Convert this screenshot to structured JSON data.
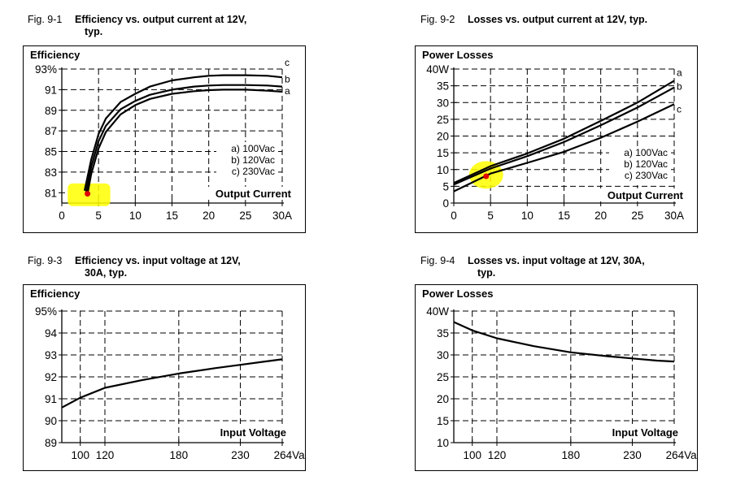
{
  "chart_data": [
    {
      "type": "line",
      "fig_num": "Fig. 9-1",
      "title": "Efficiency vs. output current at 12V,",
      "title_line2": "typ.",
      "ylabel": "Efficiency",
      "xlabel": "Output Current",
      "xlim": [
        0,
        30
      ],
      "ylim": [
        80,
        93
      ],
      "xticks": [
        0,
        5,
        10,
        15,
        20,
        25,
        30
      ],
      "xtick_labels": [
        "0",
        "5",
        "10",
        "15",
        "20",
        "25",
        "30A"
      ],
      "yticks": [
        81,
        83,
        85,
        87,
        89,
        91,
        93
      ],
      "ytick_labels": [
        "81",
        "83",
        "85",
        "87",
        "89",
        "91",
        "93%"
      ],
      "legend": [
        "a) 100Vac",
        "b) 120Vac",
        "c) 230Vac"
      ],
      "series": [
        {
          "label": "a",
          "x": [
            3.5,
            4,
            5,
            6,
            8,
            10,
            12,
            15,
            18,
            20,
            22,
            25,
            28,
            30
          ],
          "y": [
            80.9,
            82.8,
            85.3,
            86.9,
            88.6,
            89.5,
            90.1,
            90.6,
            90.85,
            90.95,
            91.0,
            91.0,
            90.9,
            90.8
          ]
        },
        {
          "label": "b",
          "x": [
            3.3,
            4,
            5,
            6,
            8,
            10,
            12,
            15,
            18,
            20,
            22,
            25,
            28,
            30
          ],
          "y": [
            81.0,
            83.5,
            86.0,
            87.5,
            89.1,
            89.9,
            90.5,
            91.0,
            91.3,
            91.4,
            91.45,
            91.45,
            91.4,
            91.3
          ]
        },
        {
          "label": "c",
          "x": [
            3.1,
            4,
            5,
            6,
            8,
            10,
            12,
            15,
            18,
            20,
            22,
            25,
            28,
            30
          ],
          "y": [
            81.2,
            84.2,
            86.7,
            88.2,
            89.8,
            90.6,
            91.3,
            91.9,
            92.2,
            92.35,
            92.4,
            92.4,
            92.35,
            92.2
          ]
        }
      ]
    },
    {
      "type": "line",
      "fig_num": "Fig. 9-2",
      "title": "Losses vs. output current at 12V, typ.",
      "title_line2": "",
      "ylabel": "Power Losses",
      "xlabel": "Output Current",
      "xlim": [
        0,
        30
      ],
      "ylim": [
        0,
        40
      ],
      "xticks": [
        0,
        5,
        10,
        15,
        20,
        25,
        30
      ],
      "xtick_labels": [
        "0",
        "5",
        "10",
        "15",
        "20",
        "25",
        "30A"
      ],
      "yticks": [
        0,
        5,
        10,
        15,
        20,
        25,
        30,
        35,
        40
      ],
      "ytick_labels": [
        "0",
        "5",
        "10",
        "15",
        "20",
        "25",
        "30",
        "35",
        "40W"
      ],
      "legend": [
        "a) 100Vac",
        "b) 120Vac",
        "c) 230Vac"
      ],
      "series": [
        {
          "label": "a",
          "x": [
            0,
            5,
            10,
            15,
            20,
            25,
            30
          ],
          "y": [
            6.0,
            11.0,
            14.8,
            19.2,
            24.5,
            30.0,
            36.5
          ]
        },
        {
          "label": "b",
          "x": [
            0,
            5,
            10,
            15,
            20,
            25,
            30
          ],
          "y": [
            5.5,
            10.3,
            14.0,
            18.2,
            23.2,
            28.5,
            34.5
          ]
        },
        {
          "label": "c",
          "x": [
            0,
            5,
            10,
            15,
            20,
            25,
            30
          ],
          "y": [
            3.5,
            8.8,
            12.0,
            15.3,
            19.5,
            24.3,
            29.5
          ]
        }
      ]
    },
    {
      "type": "line",
      "fig_num": "Fig. 9-3",
      "title": "Efficiency vs. input voltage at 12V,",
      "title_line2": "30A, typ.",
      "ylabel": "Efficiency",
      "xlabel": "Input Voltage",
      "xlim": [
        85,
        264
      ],
      "ylim": [
        89,
        95
      ],
      "xticks": [
        100,
        120,
        180,
        230,
        264
      ],
      "xtick_labels": [
        "100",
        "120",
        "180",
        "230",
        "264Vac"
      ],
      "yticks": [
        89,
        90,
        91,
        92,
        93,
        94,
        95
      ],
      "ytick_labels": [
        "89",
        "90",
        "91",
        "92",
        "93",
        "94",
        "95%"
      ],
      "legend": [],
      "series": [
        {
          "label": "",
          "x": [
            85,
            100,
            120,
            150,
            180,
            210,
            230,
            250,
            264
          ],
          "y": [
            90.6,
            91.05,
            91.5,
            91.85,
            92.15,
            92.4,
            92.55,
            92.7,
            92.8
          ]
        }
      ]
    },
    {
      "type": "line",
      "fig_num": "Fig. 9-4",
      "title": "Losses vs. input voltage at 12V, 30A,",
      "title_line2": "typ.",
      "ylabel": "Power Losses",
      "xlabel": "Input Voltage",
      "xlim": [
        85,
        264
      ],
      "ylim": [
        10,
        40
      ],
      "xticks": [
        100,
        120,
        180,
        230,
        264
      ],
      "xtick_labels": [
        "100",
        "120",
        "180",
        "230",
        "264Vac"
      ],
      "yticks": [
        10,
        15,
        20,
        25,
        30,
        35,
        40
      ],
      "ytick_labels": [
        "10",
        "15",
        "20",
        "25",
        "30",
        "35",
        "40W"
      ],
      "legend": [],
      "series": [
        {
          "label": "",
          "x": [
            85,
            100,
            120,
            150,
            180,
            210,
            230,
            250,
            264
          ],
          "y": [
            37.5,
            35.6,
            33.8,
            32.0,
            30.6,
            29.7,
            29.2,
            28.7,
            28.5
          ]
        }
      ]
    }
  ],
  "highlight_color": "#ffff00",
  "marker_color": "#e00000"
}
